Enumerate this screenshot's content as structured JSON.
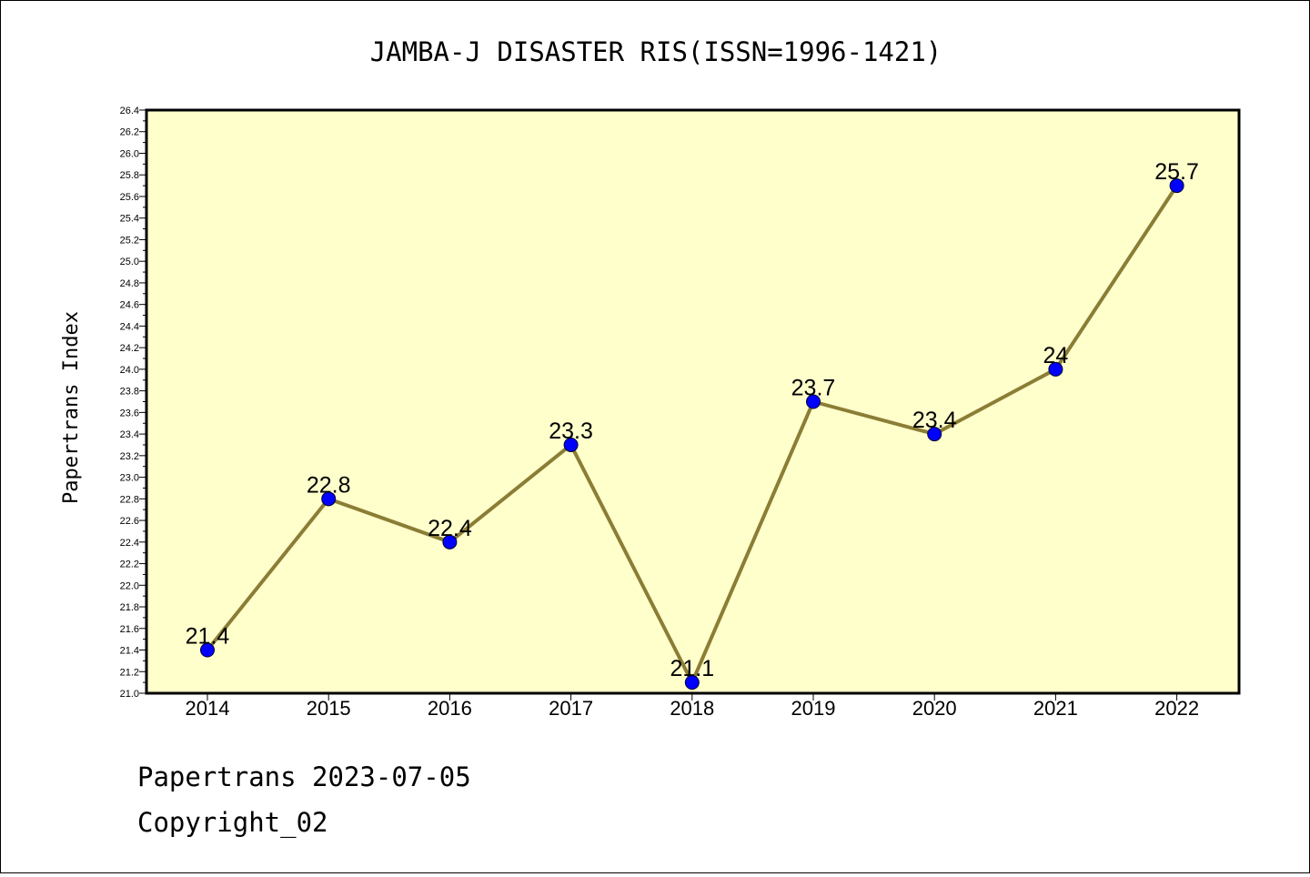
{
  "chart_data": {
    "type": "line",
    "title": "JAMBA-J DISASTER RIS(ISSN=1996-1421)",
    "xlabel": "",
    "ylabel": "Papertrans Index",
    "categories": [
      "2014",
      "2015",
      "2016",
      "2017",
      "2018",
      "2019",
      "2020",
      "2021",
      "2022"
    ],
    "values": [
      21.4,
      22.8,
      22.4,
      23.3,
      21.1,
      23.7,
      23.4,
      24.0,
      25.7
    ],
    "data_labels": [
      "21.4",
      "22.8",
      "22.4",
      "23.3",
      "21.1",
      "23.7",
      "23.4",
      "24",
      "25.7"
    ],
    "ylim": [
      21.0,
      26.4
    ],
    "yticks": [
      "21.0",
      "21.2",
      "21.4",
      "21.6",
      "21.8",
      "22.0",
      "22.2",
      "22.4",
      "22.6",
      "22.8",
      "23.0",
      "23.2",
      "23.4",
      "23.6",
      "23.8",
      "24.0",
      "24.2",
      "24.4",
      "24.6",
      "24.8",
      "25.0",
      "25.2",
      "25.4",
      "25.6",
      "25.8",
      "26.0",
      "26.2",
      "26.4"
    ],
    "grid": false,
    "colors": {
      "plot_background": "#ffffcc",
      "line": "#8b7d35",
      "marker": "#0000ff"
    }
  },
  "footer": {
    "line1": "Papertrans 2023-07-05",
    "line2": "Copyright_02"
  }
}
